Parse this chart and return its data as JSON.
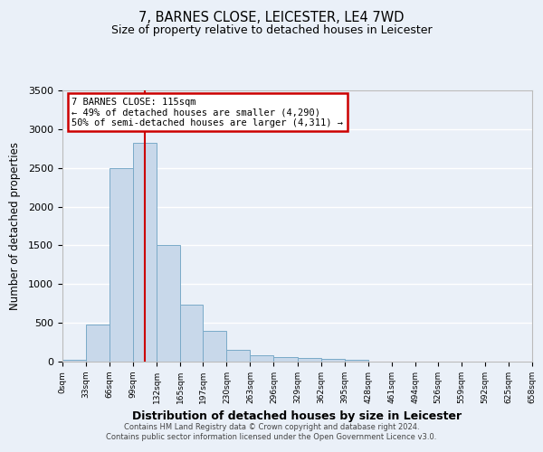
{
  "title": "7, BARNES CLOSE, LEICESTER, LE4 7WD",
  "subtitle": "Size of property relative to detached houses in Leicester",
  "xlabel": "Distribution of detached houses by size in Leicester",
  "ylabel": "Number of detached properties",
  "bar_color": "#c8d8ea",
  "bar_edge_color": "#7aaac8",
  "background_color": "#eaf0f8",
  "grid_color": "#ffffff",
  "bin_edges": [
    0,
    33,
    66,
    99,
    132,
    165,
    197,
    230,
    263,
    296,
    329,
    362,
    395,
    428,
    461,
    494,
    526,
    559,
    592,
    625,
    658
  ],
  "bin_labels": [
    "0sqm",
    "33sqm",
    "66sqm",
    "99sqm",
    "132sqm",
    "165sqm",
    "197sqm",
    "230sqm",
    "263sqm",
    "296sqm",
    "329sqm",
    "362sqm",
    "395sqm",
    "428sqm",
    "461sqm",
    "494sqm",
    "526sqm",
    "559sqm",
    "592sqm",
    "625sqm",
    "658sqm"
  ],
  "counts": [
    20,
    480,
    2500,
    2820,
    1510,
    740,
    395,
    150,
    85,
    60,
    50,
    40,
    20,
    5,
    0,
    0,
    0,
    0,
    0,
    0
  ],
  "ylim": [
    0,
    3500
  ],
  "yticks": [
    0,
    500,
    1000,
    1500,
    2000,
    2500,
    3000,
    3500
  ],
  "property_line_x": 115,
  "annotation_title": "7 BARNES CLOSE: 115sqm",
  "annotation_line1": "← 49% of detached houses are smaller (4,290)",
  "annotation_line2": "50% of semi-detached houses are larger (4,311) →",
  "annotation_box_color": "#ffffff",
  "annotation_box_edge_color": "#cc0000",
  "red_line_color": "#cc0000",
  "footer_line1": "Contains HM Land Registry data © Crown copyright and database right 2024.",
  "footer_line2": "Contains public sector information licensed under the Open Government Licence v3.0."
}
